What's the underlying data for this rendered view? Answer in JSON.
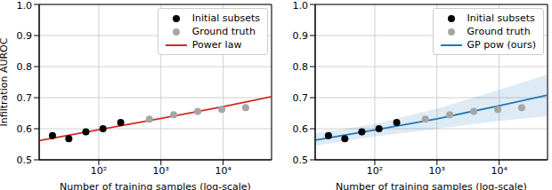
{
  "chart_data": [
    {
      "type": "line",
      "x_label": "Number of training samples (log-scale)",
      "y_label": "Infiltration AUROC",
      "log": "x",
      "grid": true,
      "legend": "upper right",
      "xlim": [
        11,
        60000
      ],
      "xticks": [
        {
          "value": 100,
          "label": "10²"
        },
        {
          "value": 1000,
          "label": "10³"
        },
        {
          "value": 10000,
          "label": "10⁴"
        }
      ],
      "ylim": [
        0.5,
        1.0
      ],
      "yticks": [
        0.5,
        0.6,
        0.7,
        0.8,
        0.9,
        {
          "value": 1.0,
          "label": "1.0"
        }
      ],
      "series": [
        {
          "name": "Initial subsets",
          "type": "scatter",
          "marker": "circle",
          "color": "#000000",
          "x": [
            18,
            33,
            62,
            117,
            225
          ],
          "values": [
            0.578,
            0.568,
            0.59,
            0.6,
            0.62
          ]
        },
        {
          "name": "Ground truth",
          "type": "scatter",
          "marker": "circle",
          "color": "#a6a6a6",
          "x": [
            650,
            1600,
            3900,
            9500,
            23000
          ],
          "values": [
            0.631,
            0.645,
            0.656,
            0.662,
            0.668
          ]
        },
        {
          "name": "Power law",
          "type": "line",
          "color": "#d62728",
          "x": [
            11,
            100,
            1000,
            10000,
            60000
          ],
          "values": [
            0.562,
            0.597,
            0.633,
            0.671,
            0.703
          ]
        }
      ]
    },
    {
      "type": "line",
      "x_label": "Number of training samples (log-scale)",
      "log": "x",
      "grid": true,
      "legend": "upper right",
      "xlim": [
        11,
        60000
      ],
      "xticks": [
        {
          "value": 100,
          "label": "10²"
        },
        {
          "value": 1000,
          "label": "10³"
        },
        {
          "value": 10000,
          "label": "10⁴"
        }
      ],
      "ylim": [
        0.5,
        1.0
      ],
      "yticks": [
        0.5,
        0.6,
        0.7,
        0.8,
        0.9,
        {
          "value": 1.0,
          "label": "1.0"
        }
      ],
      "series": [
        {
          "name": "Initial subsets",
          "type": "scatter",
          "marker": "circle",
          "color": "#000000",
          "x": [
            18,
            33,
            62,
            117,
            225
          ],
          "values": [
            0.578,
            0.568,
            0.59,
            0.6,
            0.62
          ]
        },
        {
          "name": "Ground truth",
          "type": "scatter",
          "marker": "circle",
          "color": "#a6a6a6",
          "x": [
            650,
            1600,
            3900,
            9500,
            23000
          ],
          "values": [
            0.631,
            0.645,
            0.656,
            0.662,
            0.668
          ]
        },
        {
          "name": "GP pow (ours)",
          "type": "line",
          "color": "#1f77b4",
          "x": [
            11,
            100,
            1000,
            10000,
            60000
          ],
          "values": [
            0.563,
            0.596,
            0.632,
            0.674,
            0.708
          ],
          "lower": [
            0.545,
            0.575,
            0.6,
            0.625,
            0.64
          ],
          "upper": [
            0.585,
            0.615,
            0.665,
            0.725,
            0.775
          ]
        }
      ]
    }
  ]
}
